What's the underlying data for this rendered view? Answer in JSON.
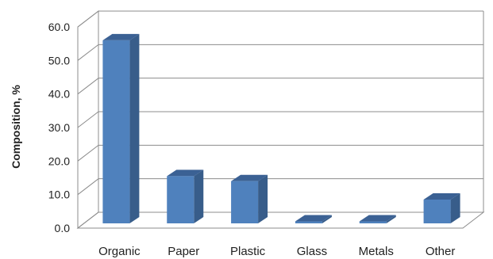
{
  "chart_data": {
    "type": "bar",
    "title": "",
    "xlabel": "",
    "ylabel": "Composition, %",
    "categories": [
      "Organic",
      "Paper",
      "Plastic",
      "Glass",
      "Metals",
      "Other"
    ],
    "values": [
      56.0,
      15.5,
      14.0,
      2.0,
      2.0,
      8.5
    ],
    "ylim": [
      0,
      60
    ],
    "yticks": [
      "0.0",
      "10.0",
      "20.0",
      "30.0",
      "40.0",
      "50.0",
      "60.0"
    ],
    "grid": true,
    "legend": "none",
    "style": "3d-column"
  },
  "colors": {
    "bar_front": "#4f81bd",
    "bar_side": "#385d8a",
    "bar_top": "#3b6194",
    "grid": "#8c8c8c",
    "wall": "#ffffff"
  }
}
